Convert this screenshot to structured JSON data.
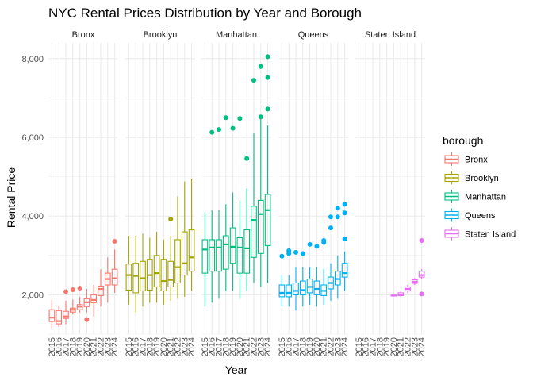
{
  "chart_data": {
    "type": "boxplot",
    "title": "NYC Rental Prices Distribution by Year and Borough",
    "xlabel": "Year",
    "ylabel": "Rental Price",
    "ylim": [
      1000,
      8400
    ],
    "yticks": [
      2000,
      4000,
      6000,
      8000
    ],
    "ytick_labels": [
      "2,000",
      "4,000",
      "6,000",
      "8,000"
    ],
    "years": [
      "2015",
      "2016",
      "2017",
      "2018",
      "2019",
      "2020",
      "2021",
      "2022",
      "2023",
      "2024"
    ],
    "grid": true,
    "legend": {
      "title": "borough",
      "position": "right",
      "entries": [
        "Bronx",
        "Brooklyn",
        "Manhattan",
        "Queens",
        "Staten Island"
      ]
    },
    "colors": {
      "Bronx": "#F8766D",
      "Brooklyn": "#A3A500",
      "Manhattan": "#00BF7D",
      "Queens": "#00B0F6",
      "Staten Island": "#E76BF3"
    },
    "panels": [
      {
        "name": "Bronx",
        "boxes": [
          {
            "year": "2015",
            "min": 1150,
            "q1": 1320,
            "median": 1420,
            "q3": 1620,
            "max": 1870,
            "outliers": []
          },
          {
            "year": "2016",
            "min": 1180,
            "q1": 1260,
            "median": 1330,
            "q3": 1600,
            "max": 1720,
            "outliers": []
          },
          {
            "year": "2017",
            "min": 1250,
            "q1": 1400,
            "median": 1450,
            "q3": 1580,
            "max": 1850,
            "outliers": [
              2080
            ]
          },
          {
            "year": "2018",
            "min": 1500,
            "q1": 1560,
            "median": 1620,
            "q3": 1660,
            "max": 1880,
            "outliers": [
              2130
            ]
          },
          {
            "year": "2019",
            "min": 1550,
            "q1": 1620,
            "median": 1700,
            "q3": 1750,
            "max": 1950,
            "outliers": [
              2170
            ]
          },
          {
            "year": "2020",
            "min": 1550,
            "q1": 1700,
            "median": 1810,
            "q3": 1900,
            "max": 2150,
            "outliers": [
              1370
            ]
          },
          {
            "year": "2021",
            "min": 1450,
            "q1": 1800,
            "median": 1870,
            "q3": 2000,
            "max": 2250,
            "outliers": []
          },
          {
            "year": "2022",
            "min": 1700,
            "q1": 1980,
            "median": 2150,
            "q3": 2220,
            "max": 2650,
            "outliers": []
          },
          {
            "year": "2023",
            "min": 1800,
            "q1": 2250,
            "median": 2400,
            "q3": 2550,
            "max": 2950,
            "outliers": []
          },
          {
            "year": "2024",
            "min": 2050,
            "q1": 2250,
            "median": 2420,
            "q3": 2650,
            "max": 3150,
            "outliers": [
              3360
            ]
          }
        ]
      },
      {
        "name": "Brooklyn",
        "boxes": [
          {
            "year": "2015",
            "min": 1750,
            "q1": 2120,
            "median": 2500,
            "q3": 2780,
            "max": 3500,
            "outliers": []
          },
          {
            "year": "2016",
            "min": 1550,
            "q1": 2050,
            "median": 2480,
            "q3": 2800,
            "max": 3500,
            "outliers": []
          },
          {
            "year": "2017",
            "min": 1700,
            "q1": 2100,
            "median": 2420,
            "q3": 2850,
            "max": 3550,
            "outliers": []
          },
          {
            "year": "2018",
            "min": 1800,
            "q1": 2120,
            "median": 2500,
            "q3": 2900,
            "max": 3450,
            "outliers": []
          },
          {
            "year": "2019",
            "min": 1800,
            "q1": 2200,
            "median": 2550,
            "q3": 3000,
            "max": 3600,
            "outliers": []
          },
          {
            "year": "2020",
            "min": 1750,
            "q1": 2100,
            "median": 2350,
            "q3": 2900,
            "max": 3400,
            "outliers": []
          },
          {
            "year": "2021",
            "min": 1850,
            "q1": 2200,
            "median": 2380,
            "q3": 2850,
            "max": 3500,
            "outliers": [
              3920
            ]
          },
          {
            "year": "2022",
            "min": 1900,
            "q1": 2300,
            "median": 2700,
            "q3": 3400,
            "max": 4500,
            "outliers": []
          },
          {
            "year": "2023",
            "min": 1950,
            "q1": 2500,
            "median": 2800,
            "q3": 3600,
            "max": 4880,
            "outliers": []
          },
          {
            "year": "2024",
            "min": 2100,
            "q1": 2600,
            "median": 2950,
            "q3": 3650,
            "max": 4950,
            "outliers": []
          }
        ]
      },
      {
        "name": "Manhattan",
        "boxes": [
          {
            "year": "2015",
            "min": 1700,
            "q1": 2550,
            "median": 3150,
            "q3": 3400,
            "max": 4100,
            "outliers": []
          },
          {
            "year": "2016",
            "min": 1800,
            "q1": 2600,
            "median": 3200,
            "q3": 3400,
            "max": 4150,
            "outliers": [
              6130
            ]
          },
          {
            "year": "2017",
            "min": 1900,
            "q1": 2600,
            "median": 3200,
            "q3": 3400,
            "max": 4150,
            "outliers": [
              6200
            ]
          },
          {
            "year": "2018",
            "min": 2100,
            "q1": 2650,
            "median": 3280,
            "q3": 3500,
            "max": 4300,
            "outliers": [
              6500
            ]
          },
          {
            "year": "2019",
            "min": 2100,
            "q1": 2800,
            "median": 3220,
            "q3": 3700,
            "max": 4600,
            "outliers": [
              6230
            ]
          },
          {
            "year": "2020",
            "min": 1900,
            "q1": 2550,
            "median": 3200,
            "q3": 3450,
            "max": 4400,
            "outliers": [
              6480
            ]
          },
          {
            "year": "2021",
            "min": 2100,
            "q1": 2550,
            "median": 3180,
            "q3": 3650,
            "max": 4700,
            "outliers": [
              5460
            ]
          },
          {
            "year": "2022",
            "min": 2300,
            "q1": 2950,
            "median": 3900,
            "q3": 4250,
            "max": 6100,
            "outliers": [
              7450
            ]
          },
          {
            "year": "2023",
            "min": 2200,
            "q1": 3050,
            "median": 4050,
            "q3": 4400,
            "max": 6500,
            "outliers": [
              6520,
              7800
            ]
          },
          {
            "year": "2024",
            "min": 2300,
            "q1": 3250,
            "median": 4150,
            "q3": 4550,
            "max": 6300,
            "outliers": [
              6720,
              7520,
              8050
            ]
          }
        ]
      },
      {
        "name": "Queens",
        "boxes": [
          {
            "year": "2015",
            "min": 1700,
            "q1": 1950,
            "median": 2050,
            "q3": 2250,
            "max": 2500,
            "outliers": [
              2980
            ]
          },
          {
            "year": "2016",
            "min": 1700,
            "q1": 1950,
            "median": 2050,
            "q3": 2250,
            "max": 2500,
            "outliers": [
              3050,
              3120
            ]
          },
          {
            "year": "2017",
            "min": 1600,
            "q1": 2000,
            "median": 2100,
            "q3": 2300,
            "max": 2700,
            "outliers": [
              3080
            ]
          },
          {
            "year": "2018",
            "min": 1700,
            "q1": 2000,
            "median": 2120,
            "q3": 2350,
            "max": 2700,
            "outliers": [
              3050
            ]
          },
          {
            "year": "2019",
            "min": 1750,
            "q1": 2050,
            "median": 2200,
            "q3": 2400,
            "max": 2700,
            "outliers": [
              3280
            ]
          },
          {
            "year": "2020",
            "min": 1700,
            "q1": 2000,
            "median": 2150,
            "q3": 2350,
            "max": 2700,
            "outliers": [
              3230
            ]
          },
          {
            "year": "2021",
            "min": 1750,
            "q1": 1980,
            "median": 2100,
            "q3": 2250,
            "max": 2650,
            "outliers": [
              3330,
              3380
            ]
          },
          {
            "year": "2022",
            "min": 1850,
            "q1": 2150,
            "median": 2300,
            "q3": 2450,
            "max": 2800,
            "outliers": [
              3700,
              3980
            ]
          },
          {
            "year": "2023",
            "min": 1900,
            "q1": 2250,
            "median": 2400,
            "q3": 2600,
            "max": 3000,
            "outliers": [
              3980,
              4200
            ]
          },
          {
            "year": "2024",
            "min": 2100,
            "q1": 2450,
            "median": 2550,
            "q3": 2800,
            "max": 3100,
            "outliers": [
              3420,
              4080,
              4300
            ]
          }
        ]
      },
      {
        "name": "Staten Island",
        "boxes": [
          {
            "year": "2020",
            "min": 1960,
            "q1": 1970,
            "median": 1980,
            "q3": 1990,
            "max": 2000,
            "outliers": []
          },
          {
            "year": "2021",
            "min": 1950,
            "q1": 1980,
            "median": 2000,
            "q3": 2050,
            "max": 2100,
            "outliers": []
          },
          {
            "year": "2022",
            "min": 2050,
            "q1": 2100,
            "median": 2150,
            "q3": 2200,
            "max": 2250,
            "outliers": []
          },
          {
            "year": "2023",
            "min": 2250,
            "q1": 2290,
            "median": 2330,
            "q3": 2380,
            "max": 2420,
            "outliers": []
          },
          {
            "year": "2024",
            "min": 2400,
            "q1": 2450,
            "median": 2500,
            "q3": 2600,
            "max": 2650,
            "outliers": [
              2020,
              3380
            ]
          }
        ]
      }
    ]
  }
}
